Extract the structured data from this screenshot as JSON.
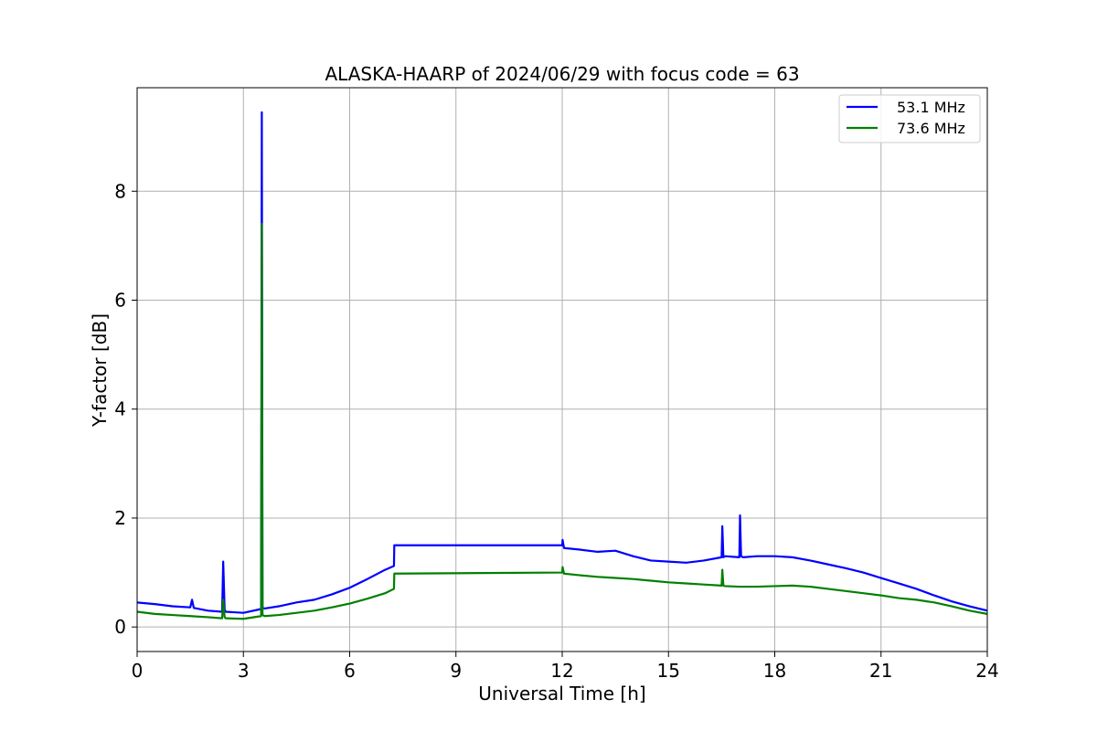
{
  "chart_data": {
    "type": "line",
    "title": "ALASKA-HAARP of 2024/06/29 with focus code = 63",
    "xlabel": "Universal Time [h]",
    "ylabel": "Y-factor [dB]",
    "xlim": [
      0,
      24
    ],
    "ylim": [
      -0.45,
      9.9
    ],
    "xticks": [
      0,
      3,
      6,
      9,
      12,
      15,
      18,
      21,
      24
    ],
    "yticks": [
      0,
      2,
      4,
      6,
      8
    ],
    "grid": true,
    "legend_position": "top-right",
    "series": [
      {
        "name": "53.1 MHz",
        "color": "#0000ff",
        "x": [
          0,
          0.5,
          1.0,
          1.5,
          1.55,
          1.6,
          2.0,
          2.4,
          2.43,
          2.47,
          2.5,
          3.0,
          3.5,
          3.52,
          3.54,
          3.6,
          4.0,
          4.5,
          5.0,
          5.5,
          6.0,
          6.5,
          7.0,
          7.25,
          7.26,
          12.0,
          12.01,
          12.05,
          12.5,
          13.0,
          13.5,
          14.0,
          14.5,
          15.0,
          15.5,
          16.0,
          16.5,
          16.52,
          16.55,
          16.6,
          17.0,
          17.02,
          17.05,
          17.1,
          17.5,
          18.0,
          18.5,
          19.0,
          19.5,
          20.0,
          20.5,
          21.0,
          21.5,
          22.0,
          22.5,
          23.0,
          23.5,
          24.0
        ],
        "y": [
          0.45,
          0.42,
          0.38,
          0.36,
          0.5,
          0.35,
          0.3,
          0.28,
          1.2,
          0.32,
          0.28,
          0.26,
          0.33,
          9.45,
          0.35,
          0.34,
          0.38,
          0.45,
          0.5,
          0.6,
          0.72,
          0.88,
          1.05,
          1.12,
          1.5,
          1.5,
          1.6,
          1.45,
          1.42,
          1.38,
          1.4,
          1.3,
          1.22,
          1.2,
          1.18,
          1.22,
          1.28,
          1.85,
          1.28,
          1.3,
          1.28,
          2.05,
          1.3,
          1.28,
          1.3,
          1.3,
          1.28,
          1.22,
          1.15,
          1.08,
          1.0,
          0.9,
          0.8,
          0.7,
          0.58,
          0.47,
          0.38,
          0.3
        ]
      },
      {
        "name": "73.6 MHz",
        "color": "#008000",
        "x": [
          0,
          0.5,
          1.0,
          1.5,
          2.0,
          2.4,
          2.43,
          2.47,
          2.5,
          3.0,
          3.5,
          3.52,
          3.54,
          3.6,
          4.0,
          4.5,
          5.0,
          5.5,
          6.0,
          6.5,
          7.0,
          7.25,
          7.26,
          12.0,
          12.01,
          12.05,
          12.5,
          13.0,
          13.5,
          14.0,
          14.5,
          15.0,
          15.5,
          16.0,
          16.5,
          16.52,
          16.55,
          16.6,
          17.0,
          17.5,
          18.0,
          18.5,
          19.0,
          19.5,
          20.0,
          20.5,
          21.0,
          21.5,
          22.0,
          22.5,
          23.0,
          23.5,
          24.0
        ],
        "y": [
          0.28,
          0.24,
          0.22,
          0.2,
          0.18,
          0.16,
          0.5,
          0.18,
          0.16,
          0.15,
          0.2,
          7.4,
          0.22,
          0.2,
          0.22,
          0.26,
          0.3,
          0.36,
          0.43,
          0.52,
          0.62,
          0.7,
          0.98,
          1.0,
          1.1,
          0.98,
          0.95,
          0.92,
          0.9,
          0.88,
          0.85,
          0.82,
          0.8,
          0.78,
          0.76,
          1.05,
          0.76,
          0.75,
          0.74,
          0.74,
          0.75,
          0.76,
          0.74,
          0.7,
          0.66,
          0.62,
          0.58,
          0.53,
          0.5,
          0.45,
          0.38,
          0.3,
          0.24
        ]
      }
    ]
  }
}
